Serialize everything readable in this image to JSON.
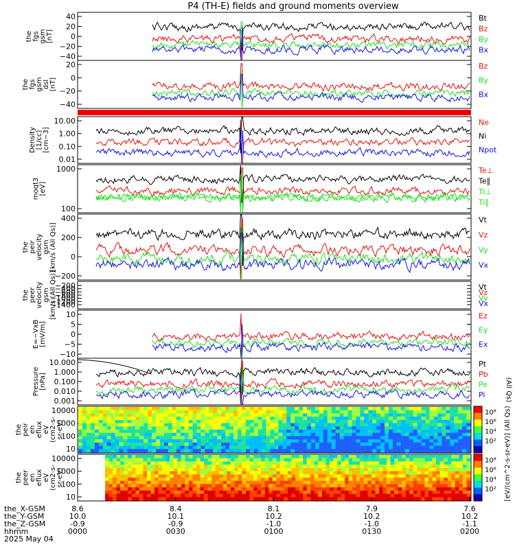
{
  "title": "P4 (TH-E) fields and ground moments overview",
  "colors": {
    "black": "#000000",
    "red": "#e01010",
    "green": "#22dd22",
    "blue": "#1010e0",
    "background": "#ffffff",
    "axis": "#000000"
  },
  "chart_data": {
    "type": "line",
    "time_axis": {
      "ticks": [
        {
          "hhmm": "0000",
          "x": "8.6",
          "y": "10.0",
          "z": "-0.9"
        },
        {
          "hhmm": "0030",
          "x": "8.4",
          "y": "10.1",
          "z": "-0.9"
        },
        {
          "hhmm": "0100",
          "x": "8.1",
          "y": "10.2",
          "z": "-1.0"
        },
        {
          "hhmm": "0130",
          "x": "7.9",
          "y": "10.2",
          "z": "-1.0"
        },
        {
          "hhmm": "0200",
          "x": "7.6",
          "y": "10.2",
          "z": "-1.1"
        }
      ],
      "row_labels": [
        "the_X-GSM",
        "the_Y-GSM",
        "the_Z-GSM",
        "hhmm",
        "2025 May 04"
      ]
    },
    "panels": [
      {
        "id": "fgs-gsm",
        "ylabel": [
          "the",
          "fgs",
          "gsm",
          "[nT]"
        ],
        "ticks": [
          "40",
          "20",
          "0",
          "−20",
          "−40"
        ],
        "ylim": [
          -40,
          45
        ],
        "legend": [
          {
            "name": "Bt",
            "color": "black"
          },
          {
            "name": "Bz",
            "color": "red"
          },
          {
            "name": "By",
            "color": "green"
          },
          {
            "name": "Bx",
            "color": "blue"
          }
        ]
      },
      {
        "id": "fgs-gsm-dsl",
        "ylabel": [
          "the",
          "fgs",
          "gsm",
          "dsl",
          "[nT]"
        ],
        "ticks": [
          "20",
          "0",
          "−20",
          "−40"
        ],
        "ylim": [
          -55,
          30
        ],
        "legend": [
          {
            "name": "Bz",
            "color": "red"
          },
          {
            "name": "By",
            "color": "green"
          },
          {
            "name": "Bx",
            "color": "blue"
          }
        ]
      },
      {
        "id": "density",
        "ylabel": [
          "Density",
          "[1/cc]",
          "[cm−3]"
        ],
        "ticks": [
          "10.00",
          "1.00",
          "0.10",
          "0.01"
        ],
        "log": true,
        "legend": [
          {
            "name": "Ne",
            "color": "red"
          },
          {
            "name": "Ni",
            "color": "black"
          },
          {
            "name": "Npot",
            "color": "blue"
          }
        ]
      },
      {
        "id": "temperature",
        "ylabel": [
          "moqt3",
          "[eV]"
        ],
        "ticks": [
          "1000",
          "100"
        ],
        "log": true,
        "legend": [
          {
            "name": "Te⊥",
            "color": "red"
          },
          {
            "name": "Te∥",
            "color": "black"
          },
          {
            "name": "Ti⊥",
            "color": "green"
          },
          {
            "name": "Ti∥",
            "color": "green"
          }
        ]
      },
      {
        "id": "peir-velocity",
        "ylabel": [
          "the",
          "peir",
          "velocity",
          "gsm",
          "[km/s (All Qs)]"
        ],
        "ticks": [
          "400",
          "200",
          "0",
          "−200"
        ],
        "ylim": [
          -200,
          450
        ],
        "legend": [
          {
            "name": "Vt",
            "color": "black"
          },
          {
            "name": "Vz",
            "color": "red"
          },
          {
            "name": "Vy",
            "color": "green"
          },
          {
            "name": "Vx",
            "color": "blue"
          }
        ]
      },
      {
        "id": "peer-velocity",
        "ylabel": [
          "the",
          "peer",
          "velocity",
          "gsm",
          "[km/s (All Qs)]"
        ],
        "ticks": [
          "−200",
          "−400",
          "−600",
          "−800",
          "−1000",
          "−1200",
          "−1400"
        ],
        "ylim": [
          -1450,
          -150
        ],
        "legend": [
          {
            "name": "Vt",
            "color": "black"
          },
          {
            "name": "Vz",
            "color": "red"
          },
          {
            "name": "Vy",
            "color": "green"
          },
          {
            "name": "Vx",
            "color": "blue"
          }
        ]
      },
      {
        "id": "efield",
        "ylabel": [
          "E=−VxB",
          "[mV/m]"
        ],
        "ticks": [
          "10",
          "5",
          "0",
          "−5",
          "−10"
        ],
        "ylim": [
          -11,
          11
        ],
        "legend": [
          {
            "name": "Ez",
            "color": "red"
          },
          {
            "name": "Ey",
            "color": "green"
          },
          {
            "name": "Ex",
            "color": "blue"
          }
        ]
      },
      {
        "id": "pressure",
        "ylabel": [
          "Pressure",
          "[nPa]"
        ],
        "ticks": [
          "10.000",
          "1.000",
          "0.100",
          "0.010",
          "0.001"
        ],
        "log": true,
        "legend": [
          {
            "name": "Pt",
            "color": "black"
          },
          {
            "name": "Pb",
            "color": "red"
          },
          {
            "name": "Pe",
            "color": "green"
          },
          {
            "name": "Pi",
            "color": "blue"
          }
        ],
        "side_label": "(All Qs)"
      },
      {
        "id": "peir-eflux",
        "type": "heatmap",
        "ylabel": [
          "the",
          "peir",
          "en",
          "eflux",
          "eV",
          "(cm2-s-",
          "sr-eV)"
        ],
        "ticks": [
          "10000",
          "1000",
          "100",
          "10"
        ],
        "log": true
      },
      {
        "id": "peer-eflux",
        "type": "heatmap",
        "ylabel": [
          "the",
          "peer",
          "en",
          "eflux",
          "eV",
          "(cm2-s-",
          "sr-eV)"
        ],
        "ticks": [
          "10000",
          "1000",
          "100",
          "10"
        ],
        "log": true
      }
    ],
    "colorbars": [
      {
        "ticks": [
          "10⁸",
          "10⁶",
          "10⁴",
          "10²"
        ]
      },
      {
        "ticks": [
          "10⁸",
          "10⁶",
          "10⁴",
          "10²"
        ]
      }
    ],
    "colorbar_label": "[eV/(cm^2-s-sr-eV)] (All Qs)"
  }
}
